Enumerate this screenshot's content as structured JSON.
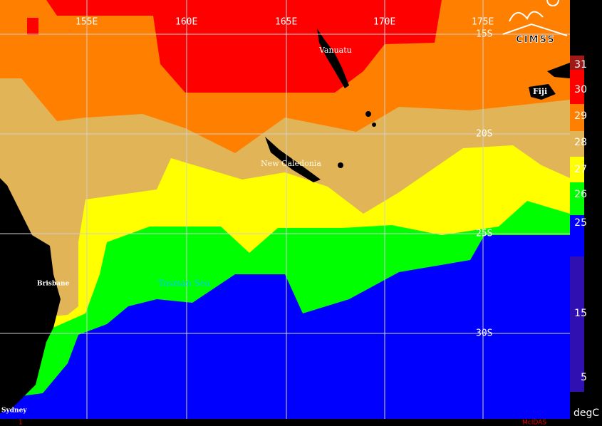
{
  "map": {
    "longitude_labels": [
      "155E",
      "160E",
      "165E",
      "170E",
      "175E"
    ],
    "latitude_labels": [
      "15S",
      "20S",
      "25S",
      "30S"
    ],
    "places": [
      "Vanuatu",
      "Fiji",
      "New Caledonia",
      "Brisbane",
      "Tasman Sea",
      "Sydney"
    ],
    "logo": "CIMSS",
    "footer": {
      "frame": "1",
      "software": "McIDAS"
    }
  },
  "colorbar": {
    "labels": [
      "31",
      "30",
      "29",
      "28",
      "27",
      "26",
      "25",
      "15",
      "5"
    ],
    "unit": "degC"
  }
}
